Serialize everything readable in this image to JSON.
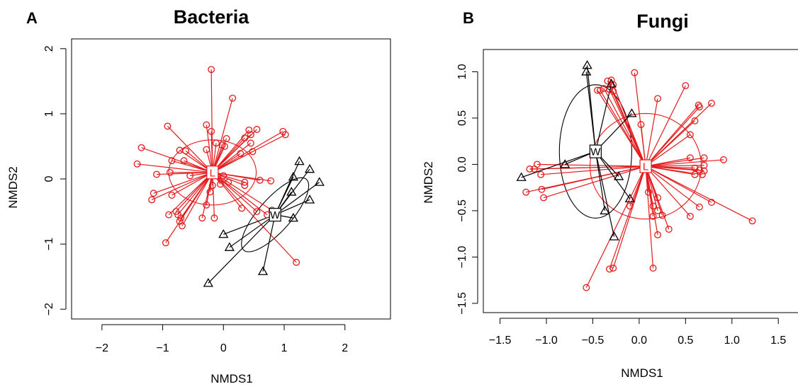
{
  "figure": {
    "background": "#ffffff",
    "group_l_color": "#e41a1c",
    "group_w_color": "#000000"
  },
  "chart_data": [
    {
      "type": "scatter",
      "panel_letter": "A",
      "title": "Bacteria",
      "xlabel": "NMDS1",
      "ylabel": "NMDS2",
      "xlim": [
        -2.5,
        2.75
      ],
      "ylim": [
        -2.15,
        2.15
      ],
      "xticks": [
        -2,
        -1,
        0,
        1,
        2
      ],
      "yticks": [
        -2,
        -1,
        0,
        1,
        2
      ],
      "grid": false,
      "groups": [
        {
          "name": "L",
          "color": "#e41a1c",
          "marker": "circle",
          "centroid": [
            -0.18,
            0.1
          ],
          "ellipse": {
            "rx": 0.72,
            "ry": 0.5,
            "angle_deg": 0
          },
          "points": [
            [
              -0.2,
              1.68
            ],
            [
              0.15,
              1.24
            ],
            [
              -0.28,
              0.83
            ],
            [
              -0.2,
              0.73
            ],
            [
              0.98,
              0.73
            ],
            [
              0.42,
              0.75
            ],
            [
              0.55,
              0.76
            ],
            [
              1.02,
              0.68
            ],
            [
              0.45,
              0.68
            ],
            [
              0.35,
              0.63
            ],
            [
              0.05,
              0.62
            ],
            [
              -0.92,
              0.81
            ],
            [
              -0.62,
              0.43
            ],
            [
              -0.72,
              0.44
            ],
            [
              -0.12,
              0.55
            ],
            [
              -0.28,
              0.45
            ],
            [
              -0.02,
              0.52
            ],
            [
              0.28,
              0.39
            ],
            [
              0.45,
              0.55
            ],
            [
              0.02,
              0.5
            ],
            [
              -1.35,
              0.48
            ],
            [
              -0.85,
              0.28
            ],
            [
              -1.42,
              0.23
            ],
            [
              -0.65,
              0.28
            ],
            [
              -0.55,
              0.05
            ],
            [
              -0.88,
              0.1
            ],
            [
              -1.1,
              0.07
            ],
            [
              0.0,
              0.05
            ],
            [
              -0.18,
              -0.1
            ],
            [
              0.35,
              -0.05
            ],
            [
              0.08,
              -0.05
            ],
            [
              -0.05,
              -0.08
            ],
            [
              0.6,
              -0.02
            ],
            [
              0.78,
              -0.03
            ],
            [
              -1.15,
              -0.22
            ],
            [
              -1.18,
              -0.32
            ],
            [
              -0.85,
              -0.25
            ],
            [
              -0.9,
              -0.55
            ],
            [
              -0.78,
              -0.5
            ],
            [
              -0.75,
              -0.55
            ],
            [
              -0.7,
              -0.6
            ],
            [
              -0.68,
              -0.72
            ],
            [
              -0.72,
              -0.65
            ],
            [
              -0.35,
              -0.6
            ],
            [
              -0.28,
              -0.4
            ],
            [
              -0.15,
              -0.6
            ],
            [
              -0.22,
              -0.2
            ],
            [
              -0.95,
              -0.98
            ],
            [
              0.8,
              -0.48
            ],
            [
              0.55,
              -0.5
            ],
            [
              0.72,
              -0.55
            ],
            [
              1.2,
              -1.28
            ],
            [
              0.3,
              -0.45
            ],
            [
              0.35,
              -0.1
            ],
            [
              0.48,
              0.42
            ]
          ]
        },
        {
          "name": "W",
          "color": "#000000",
          "marker": "triangle",
          "centroid": [
            0.85,
            -0.55
          ],
          "ellipse": {
            "rx": 0.75,
            "ry": 0.26,
            "angle_deg": 46
          },
          "points": [
            [
              1.25,
              0.27
            ],
            [
              1.42,
              0.15
            ],
            [
              1.58,
              -0.05
            ],
            [
              1.15,
              0.03
            ],
            [
              1.12,
              -0.2
            ],
            [
              1.42,
              -0.32
            ],
            [
              1.15,
              -0.6
            ],
            [
              0.0,
              -0.85
            ],
            [
              0.1,
              -1.05
            ],
            [
              0.65,
              -1.42
            ],
            [
              -0.25,
              -1.6
            ]
          ]
        }
      ]
    },
    {
      "type": "scatter",
      "panel_letter": "B",
      "title": "Fungi",
      "xlabel": "NMDS1",
      "ylabel": "NMDS2",
      "xlim": [
        -1.68,
        1.72
      ],
      "ylim": [
        -1.6,
        1.24
      ],
      "xticks": [
        -1.5,
        -1.0,
        -0.5,
        0.0,
        0.5,
        1.0,
        1.5
      ],
      "yticks": [
        -1.5,
        -1.0,
        -0.5,
        0.0,
        0.5,
        1.0
      ],
      "grid": false,
      "groups": [
        {
          "name": "L",
          "color": "#e41a1c",
          "marker": "circle",
          "centroid": [
            0.07,
            -0.02
          ],
          "ellipse": {
            "rx": 0.6,
            "ry": 0.57,
            "angle_deg": 0
          },
          "points": [
            [
              -0.42,
              0.8
            ],
            [
              -0.3,
              0.91
            ],
            [
              -0.34,
              0.9
            ],
            [
              -0.28,
              0.86
            ],
            [
              -0.32,
              0.81
            ],
            [
              -0.28,
              0.79
            ],
            [
              -0.38,
              0.82
            ],
            [
              -0.45,
              0.8
            ],
            [
              -0.05,
              0.99
            ],
            [
              0.2,
              0.71
            ],
            [
              0.5,
              0.85
            ],
            [
              0.64,
              0.64
            ],
            [
              0.65,
              0.62
            ],
            [
              0.78,
              0.66
            ],
            [
              0.6,
              0.47
            ],
            [
              0.02,
              0.43
            ],
            [
              0.55,
              0.32
            ],
            [
              -1.1,
              0.0
            ],
            [
              -1.18,
              -0.05
            ],
            [
              -1.13,
              -0.05
            ],
            [
              -1.06,
              -0.11
            ],
            [
              -1.22,
              -0.3
            ],
            [
              -1.05,
              -0.27
            ],
            [
              -1.03,
              -0.36
            ],
            [
              0.2,
              -0.36
            ],
            [
              0.55,
              -0.56
            ],
            [
              0.65,
              -0.46
            ],
            [
              0.78,
              -0.41
            ],
            [
              0.91,
              0.05
            ],
            [
              0.7,
              0.07
            ],
            [
              0.55,
              0.07
            ],
            [
              0.7,
              -0.01
            ],
            [
              0.6,
              -0.04
            ],
            [
              0.65,
              -0.06
            ],
            [
              0.7,
              -0.07
            ],
            [
              0.68,
              -0.11
            ],
            [
              0.6,
              -0.11
            ],
            [
              1.22,
              -0.61
            ],
            [
              0.15,
              -0.45
            ],
            [
              0.2,
              -0.5
            ],
            [
              0.25,
              -0.55
            ],
            [
              0.15,
              -0.56
            ],
            [
              0.32,
              -0.7
            ],
            [
              0.2,
              -0.76
            ],
            [
              -0.1,
              -0.45
            ],
            [
              -0.28,
              -1.12
            ],
            [
              -0.32,
              -1.13
            ],
            [
              0.15,
              -1.12
            ],
            [
              -0.57,
              -1.33
            ],
            [
              0.1,
              -0.3
            ]
          ]
        },
        {
          "name": "W",
          "color": "#000000",
          "marker": "triangle",
          "centroid": [
            -0.47,
            0.14
          ],
          "ellipse": {
            "rx": 0.39,
            "ry": 0.72,
            "angle_deg": 0
          },
          "points": [
            [
              -0.56,
              1.07
            ],
            [
              -0.57,
              1.0
            ],
            [
              -0.08,
              0.55
            ],
            [
              -1.27,
              -0.14
            ],
            [
              -0.8,
              0.0
            ],
            [
              -0.22,
              -0.13
            ],
            [
              -0.37,
              -0.5
            ],
            [
              -0.27,
              -0.78
            ],
            [
              -0.1,
              -0.37
            ],
            [
              -0.3,
              0.87
            ]
          ]
        }
      ]
    }
  ]
}
